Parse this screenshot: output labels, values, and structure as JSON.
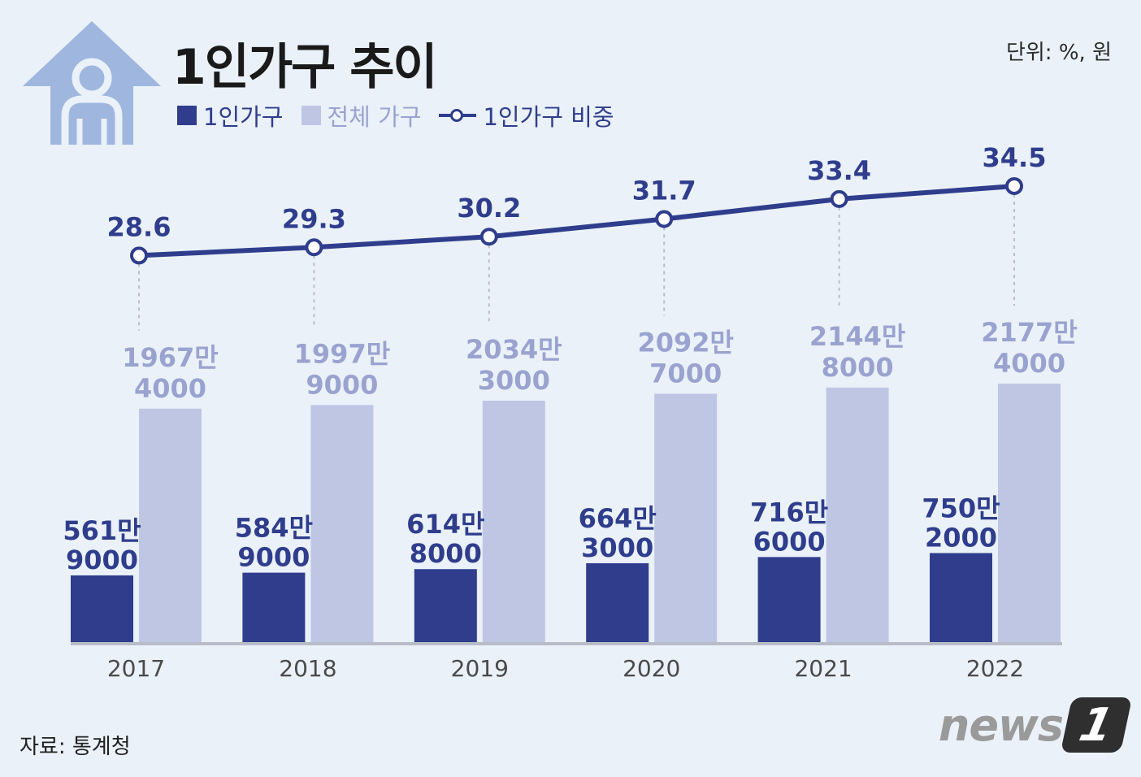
{
  "header": {
    "title": "1인가구 추이",
    "unit": "단위: %, 원"
  },
  "legend": {
    "single": "1인가구",
    "total": "전체 가구",
    "ratio": "1인가구 비중"
  },
  "footer": {
    "source": "자료: 통계청",
    "brand_word": "news",
    "brand_badge": "1"
  },
  "colors": {
    "single_bar": "#2f3d8c",
    "total_bar": "#bfc6e4",
    "ratio_line": "#2f3d8c",
    "background": "#eaf1f8",
    "icon": "#9fb6df"
  },
  "icon": "house-person-icon",
  "chart_data": {
    "type": "bar",
    "title": "1인가구 추이",
    "xlabel": "",
    "ylabel": "",
    "categories": [
      "2017",
      "2018",
      "2019",
      "2020",
      "2021",
      "2022"
    ],
    "series": [
      {
        "name": "1인가구",
        "values": [
          5619000,
          5849000,
          6148000,
          6643000,
          7166000,
          7502000
        ],
        "labels": [
          [
            "561만",
            "9000"
          ],
          [
            "584만",
            "9000"
          ],
          [
            "614만",
            "8000"
          ],
          [
            "664만",
            "3000"
          ],
          [
            "716만",
            "6000"
          ],
          [
            "750만",
            "2000"
          ]
        ]
      },
      {
        "name": "전체 가구",
        "values": [
          19674000,
          19979000,
          20343000,
          20927000,
          21448000,
          21774000
        ],
        "labels": [
          [
            "1967만",
            "4000"
          ],
          [
            "1997만",
            "9000"
          ],
          [
            "2034만",
            "3000"
          ],
          [
            "2092만",
            "7000"
          ],
          [
            "2144만",
            "8000"
          ],
          [
            "2177만",
            "4000"
          ]
        ]
      },
      {
        "name": "1인가구 비중",
        "type": "line",
        "values": [
          28.6,
          29.3,
          30.2,
          31.7,
          33.4,
          34.5
        ],
        "labels": [
          "28.6",
          "29.3",
          "30.2",
          "31.7",
          "33.4",
          "34.5"
        ]
      }
    ],
    "bar_ylim": [
      0,
      50000000
    ],
    "line_ylim": [
      22,
      36.5
    ],
    "grid": false,
    "legend_position": "top-left"
  }
}
